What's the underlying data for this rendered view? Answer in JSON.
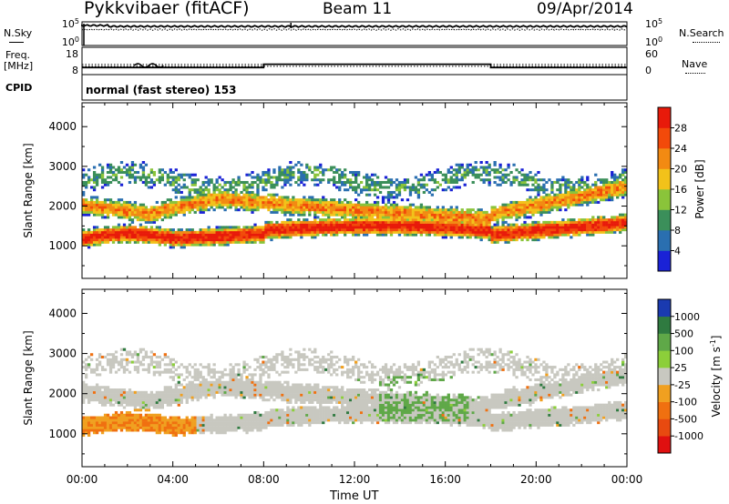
{
  "header": {
    "station": "Pykkvibaer (fitACF)",
    "beam": "Beam 11",
    "date": "09/Apr/2014"
  },
  "noise_panel": {
    "left_label": "N.Sky",
    "right_label": "N.Search",
    "left_ticks": [
      "10^5",
      "10^0"
    ],
    "right_ticks": [
      "10^5",
      "10^0"
    ]
  },
  "freq_panel": {
    "left_label_1": "Freq.",
    "left_label_2": "[MHz]",
    "right_label": "Nave",
    "left_ticks": [
      "18",
      "8"
    ],
    "right_ticks": [
      "60",
      "0"
    ],
    "freq_series_mhz": {
      "times": [
        "00:00",
        "08:00",
        "18:00",
        "24:00"
      ],
      "values": [
        10.0,
        11.5,
        10.0,
        10.0
      ]
    },
    "nave_level": 21
  },
  "cpid": {
    "label": "CPID",
    "text": "normal (fast stereo) 153"
  },
  "chart_data": [
    {
      "type": "heatmap",
      "name": "power",
      "ylabel": "Slant Range [km]",
      "yticks": [
        1000,
        2000,
        3000,
        4000
      ],
      "ylim": [
        180,
        4600
      ],
      "xlim_hours": [
        0,
        24
      ],
      "colorbar_label": "Power [dB]",
      "colorbar_ticks": [
        "4",
        "8",
        "12",
        "16",
        "20",
        "24",
        "28"
      ],
      "colorbar_colors": [
        "#1a22d6",
        "#2a6fb0",
        "#3b8f5a",
        "#8ac43a",
        "#f2c21a",
        "#f28a12",
        "#f24a0a",
        "#e81a0a"
      ],
      "colorbar_range": [
        0,
        32
      ]
    },
    {
      "type": "heatmap",
      "name": "velocity",
      "ylabel": "Slant Range [km]",
      "yticks": [
        1000,
        2000,
        3000,
        4000
      ],
      "ylim": [
        180,
        4600
      ],
      "xlim_hours": [
        0,
        24
      ],
      "colorbar_label": "Velocity  [m s",
      "colorbar_label_sup": "-1",
      "colorbar_label_end": "]",
      "colorbar_ticks": [
        "1000",
        "500",
        "100",
        "25",
        "-25",
        "-100",
        "-500",
        "-1000"
      ],
      "colorbar_colors": [
        "#1a3ab0",
        "#2f7a40",
        "#5fa848",
        "#8ccf3a",
        "#c8c8c0",
        "#f0a020",
        "#f07010",
        "#e84a10",
        "#e01010"
      ]
    }
  ],
  "xaxis": {
    "ticks": [
      "00:00",
      "04:00",
      "08:00",
      "12:00",
      "16:00",
      "20:00",
      "00:00"
    ],
    "label": "Time UT"
  }
}
